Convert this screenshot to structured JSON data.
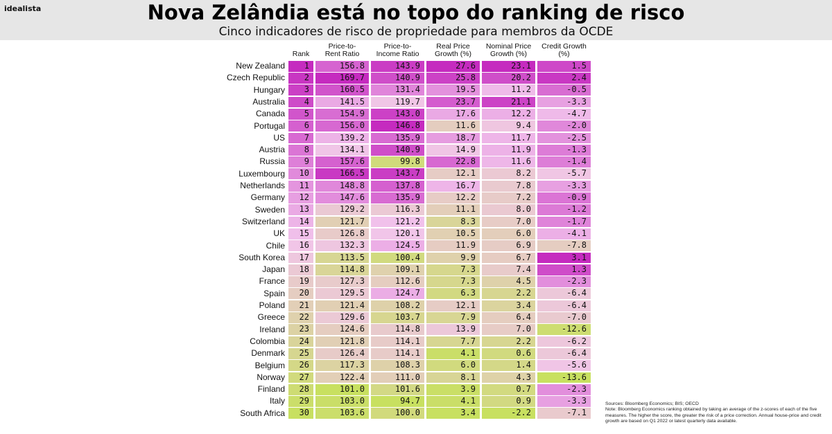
{
  "brand": "idealista",
  "title": "Nova Zelândia está no topo do ranking de risco",
  "subtitle": "Cinco indicadores de risco de propriedade para membros da OCDE",
  "footer": {
    "sources": "Sources: Bloomberg Economics; BIS; OECD",
    "note": "Note: Bloomberg Economics ranking obtained by taking an average of the z-scores of each of the five measures. The higher the score, the greater the risk of a price correction. Annual house-price and credit growth are based on Q1 2022 or latest quarterly data available."
  },
  "colors": {
    "high": "#c52bbf",
    "mid": "#f2c4ec",
    "low": "#c8e060",
    "banner": "#e6e6e6"
  },
  "chart_data": {
    "type": "heatmap",
    "title": "Nova Zelândia está no topo do ranking de risco",
    "subtitle": "Cinco indicadores de risco de propriedade para membros da OCDE",
    "columns": [
      {
        "key": "rank",
        "label": "Rank"
      },
      {
        "key": "price_to_rent",
        "label": "Price-to-\nRent Ratio"
      },
      {
        "key": "price_to_income",
        "label": "Price-to-\nIncome Ratio"
      },
      {
        "key": "real_price_growth",
        "label": "Real Price\nGrowth (%)"
      },
      {
        "key": "nominal_price_growth",
        "label": "Nominal Price\nGrowth (%)"
      },
      {
        "key": "credit_growth",
        "label": "Credit Growth\n(%)"
      }
    ],
    "rows": [
      {
        "country": "New Zealand",
        "values": [
          "1",
          "156.8",
          "143.9",
          "27.6",
          "23.1",
          "1.5"
        ]
      },
      {
        "country": "Czech Republic",
        "values": [
          "2",
          "169.7",
          "140.9",
          "25.8",
          "20.2",
          "2.4"
        ]
      },
      {
        "country": "Hungary",
        "values": [
          "3",
          "160.5",
          "131.4",
          "19.5",
          "11.2",
          "-0.5"
        ]
      },
      {
        "country": "Australia",
        "values": [
          "4",
          "141.5",
          "119.7",
          "23.7",
          "21.1",
          "-3.3"
        ]
      },
      {
        "country": "Canada",
        "values": [
          "5",
          "154.9",
          "143.0",
          "17.6",
          "12.2",
          "-4.7"
        ]
      },
      {
        "country": "Portugal",
        "values": [
          "6",
          "156.0",
          "146.8",
          "11.6",
          "9.4",
          "-2.0"
        ]
      },
      {
        "country": "US",
        "values": [
          "7",
          "139.2",
          "135.9",
          "18.7",
          "11.7",
          "-2.5"
        ]
      },
      {
        "country": "Austria",
        "values": [
          "8",
          "134.1",
          "140.9",
          "14.9",
          "11.9",
          "-1.3"
        ]
      },
      {
        "country": "Russia",
        "values": [
          "9",
          "157.6",
          "99.8",
          "22.8",
          "11.6",
          "-1.4"
        ]
      },
      {
        "country": "Luxembourg",
        "values": [
          "10",
          "166.5",
          "143.7",
          "12.1",
          "8.2",
          "-5.7"
        ]
      },
      {
        "country": "Netherlands",
        "values": [
          "11",
          "148.8",
          "137.8",
          "16.7",
          "7.8",
          "-3.3"
        ]
      },
      {
        "country": "Germany",
        "values": [
          "12",
          "147.6",
          "135.9",
          "12.2",
          "7.2",
          "-0.9"
        ]
      },
      {
        "country": "Sweden",
        "values": [
          "13",
          "129.2",
          "116.3",
          "11.1",
          "8.0",
          "-1.2"
        ]
      },
      {
        "country": "Switzerland",
        "values": [
          "14",
          "121.7",
          "121.2",
          "8.3",
          "7.0",
          "-1.7"
        ]
      },
      {
        "country": "UK",
        "values": [
          "15",
          "126.8",
          "120.1",
          "10.5",
          "6.0",
          "-4.1"
        ]
      },
      {
        "country": "Chile",
        "values": [
          "16",
          "132.3",
          "124.5",
          "11.9",
          "6.9",
          "-7.8"
        ]
      },
      {
        "country": "South Korea",
        "values": [
          "17",
          "113.5",
          "100.4",
          "9.9",
          "6.7",
          "3.1"
        ]
      },
      {
        "country": "Japan",
        "values": [
          "18",
          "114.8",
          "109.1",
          "7.3",
          "7.4",
          "1.3"
        ]
      },
      {
        "country": "France",
        "values": [
          "19",
          "127.3",
          "112.6",
          "7.3",
          "4.5",
          "-2.3"
        ]
      },
      {
        "country": "Spain",
        "values": [
          "20",
          "129.5",
          "124.7",
          "6.3",
          "2.2",
          "-6.4"
        ]
      },
      {
        "country": "Poland",
        "values": [
          "21",
          "121.4",
          "108.2",
          "12.1",
          "3.4",
          "-6.4"
        ]
      },
      {
        "country": "Greece",
        "values": [
          "22",
          "129.6",
          "103.7",
          "7.9",
          "6.4",
          "-7.0"
        ]
      },
      {
        "country": "Ireland",
        "values": [
          "23",
          "124.6",
          "114.8",
          "13.9",
          "7.0",
          "-12.6"
        ]
      },
      {
        "country": "Colombia",
        "values": [
          "24",
          "121.8",
          "114.1",
          "7.7",
          "2.2",
          "-6.2"
        ]
      },
      {
        "country": "Denmark",
        "values": [
          "25",
          "126.4",
          "114.1",
          "4.1",
          "0.6",
          "-6.4"
        ]
      },
      {
        "country": "Belgium",
        "values": [
          "26",
          "117.3",
          "108.3",
          "6.0",
          "1.4",
          "-5.6"
        ]
      },
      {
        "country": "Norway",
        "values": [
          "27",
          "122.4",
          "111.0",
          "8.1",
          "4.3",
          "-13.6"
        ]
      },
      {
        "country": "Finland",
        "values": [
          "28",
          "101.0",
          "101.6",
          "3.9",
          "0.7",
          "-2.3"
        ]
      },
      {
        "country": "Italy",
        "values": [
          "29",
          "103.0",
          "94.7",
          "4.1",
          "0.9",
          "-3.3"
        ]
      },
      {
        "country": "South Africa",
        "values": [
          "30",
          "103.6",
          "100.0",
          "3.4",
          "-2.2",
          "-7.1"
        ]
      }
    ]
  }
}
